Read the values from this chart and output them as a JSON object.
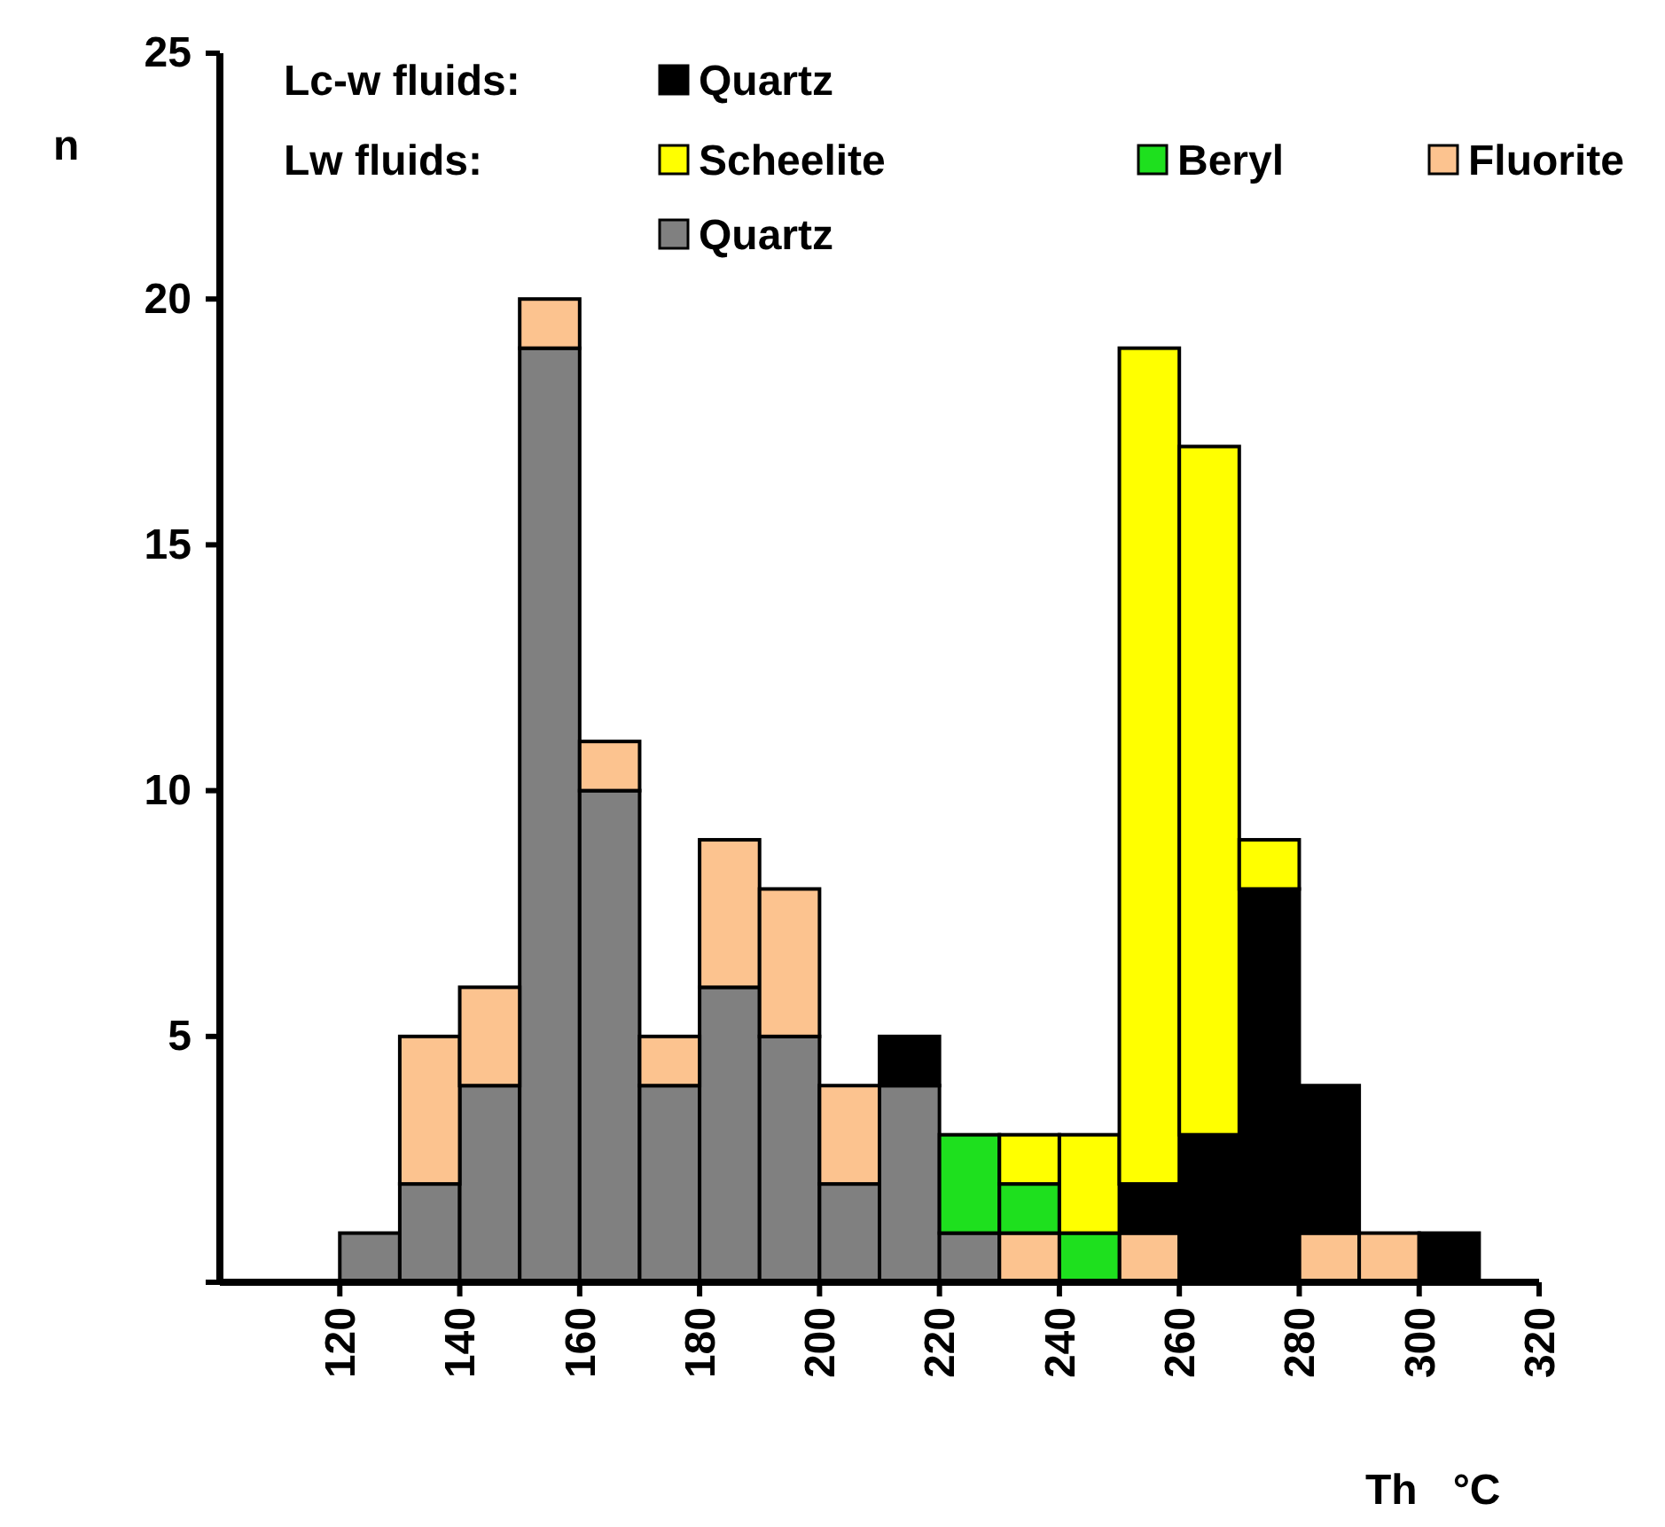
{
  "chart_data": {
    "type": "bar",
    "stacked": true,
    "x": [
      125,
      135,
      145,
      155,
      165,
      175,
      185,
      195,
      205,
      215,
      225,
      235,
      245,
      255,
      265,
      275,
      285,
      295,
      305
    ],
    "series": [
      {
        "name": "Quartz",
        "color": "#808080",
        "values": [
          1,
          2,
          4,
          19,
          10,
          4,
          6,
          5,
          2,
          4,
          1,
          0,
          0,
          0,
          0,
          0,
          0,
          0,
          0
        ]
      },
      {
        "name": "Fluorite",
        "color": "#fcc38f",
        "values": [
          0,
          3,
          2,
          1,
          1,
          1,
          3,
          3,
          2,
          0,
          0,
          1,
          0,
          1,
          0,
          0,
          1,
          1,
          0
        ]
      },
      {
        "name": "Quartz",
        "color": "#000000",
        "values": [
          0,
          0,
          0,
          0,
          0,
          0,
          0,
          0,
          0,
          1,
          0,
          0,
          0,
          1,
          3,
          8,
          3,
          0,
          1
        ]
      },
      {
        "name": "Beryl",
        "color": "#1ee01e",
        "values": [
          0,
          0,
          0,
          0,
          0,
          0,
          0,
          0,
          0,
          0,
          2,
          1,
          1,
          0,
          0,
          0,
          0,
          0,
          0
        ]
      },
      {
        "name": "Scheelite",
        "color": "#ffff00",
        "values": [
          0,
          0,
          0,
          0,
          0,
          0,
          0,
          0,
          0,
          0,
          0,
          1,
          2,
          17,
          14,
          1,
          0,
          0,
          0
        ]
      }
    ],
    "xlim": [
      100,
      320
    ],
    "xticks": [
      120,
      140,
      160,
      180,
      200,
      220,
      240,
      260,
      280,
      300,
      320
    ],
    "ylim": [
      0,
      25
    ],
    "yticks": [
      {
        "value": 0,
        "label": null
      },
      5,
      10,
      15,
      20,
      25
    ],
    "xlabel": "Th   °C",
    "ylabel": "n",
    "annotations": [
      "Lc-w fluids:",
      "Lw fluids:"
    ],
    "legend": "top",
    "grid": false
  }
}
